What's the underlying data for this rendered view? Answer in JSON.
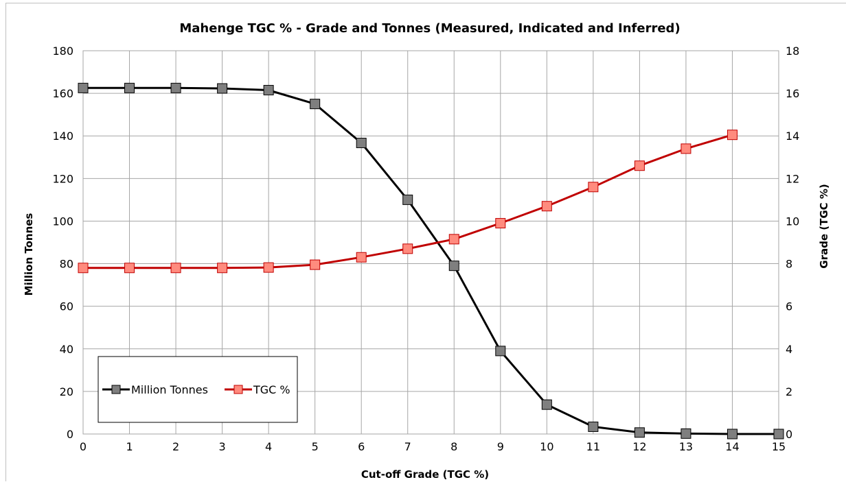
{
  "chart_data": {
    "type": "line",
    "title": "Mahenge TGC % - Grade and Tonnes (Measured, Indicated and Inferred)",
    "xlabel": "Cut-off Grade (TGC %)",
    "ylabel_left": "Million Tonnes",
    "ylabel_right": "Grade (TGC %)",
    "x": [
      0,
      1,
      2,
      3,
      4,
      5,
      6,
      7,
      8,
      9,
      10,
      11,
      12,
      13,
      14,
      15
    ],
    "xlim": [
      0,
      15
    ],
    "ylim_left": [
      0,
      180
    ],
    "ylim_right": [
      0,
      18
    ],
    "left_ticks": [
      "0",
      "20",
      "40",
      "60",
      "80",
      "100",
      "120",
      "140",
      "160",
      "180"
    ],
    "right_ticks": [
      "0",
      "2",
      "4",
      "6",
      "8",
      "10",
      "12",
      "14",
      "16",
      "18"
    ],
    "x_ticks": [
      "0",
      "1",
      "2",
      "3",
      "4",
      "5",
      "6",
      "7",
      "8",
      "9",
      "10",
      "11",
      "12",
      "13",
      "14",
      "15"
    ],
    "grid": true,
    "legend_position": "bottom-left",
    "series": [
      {
        "name": "Million Tonnes",
        "axis": "left",
        "color": "#000000",
        "marker_color": "#7f7f7f",
        "values": [
          162.5,
          162.5,
          162.5,
          162.3,
          161.5,
          155,
          136.7,
          110,
          79,
          39,
          13.8,
          3.4,
          0.7,
          0.2,
          0,
          0
        ]
      },
      {
        "name": "TGC %",
        "axis": "right",
        "color": "#c00000",
        "marker_color": "#ff8b7e",
        "values": [
          7.8,
          7.8,
          7.8,
          7.8,
          7.82,
          7.95,
          8.3,
          8.7,
          9.15,
          9.9,
          10.7,
          11.6,
          12.6,
          13.4,
          14.05,
          null
        ]
      }
    ]
  }
}
